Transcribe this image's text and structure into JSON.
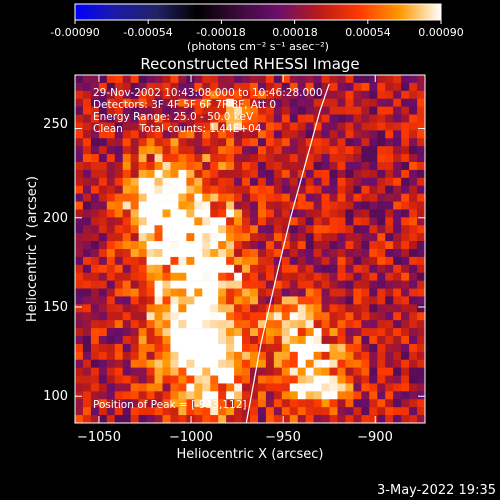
{
  "colorbar": {
    "ticks": [
      "-0.00090",
      "-0.00054",
      "-0.00018",
      "0.00018",
      "0.00054",
      "0.00090"
    ],
    "units_label": "(photons cm⁻² s⁻¹ asec⁻²)",
    "colors": [
      "#0000ff",
      "#1b1ba6",
      "#222266",
      "#000000",
      "#3a0a3a",
      "#6b0f6b",
      "#b81a1a",
      "#ff3a00",
      "#ff9900",
      "#ffffff"
    ]
  },
  "chart_data": {
    "type": "heatmap",
    "title": "Reconstructed RHESSI Image",
    "xlabel": "Heliocentric X (arcsec)",
    "ylabel": "Heliocentric Y (arcsec)",
    "xlim": [
      -1063,
      -873
    ],
    "ylim": [
      85,
      280
    ],
    "x_ticks": [
      -1050,
      -1000,
      -950,
      -900
    ],
    "y_ticks": [
      100,
      150,
      200,
      250
    ],
    "x_tick_labels": [
      "−1050",
      "−1000",
      "−950",
      "−900"
    ],
    "y_tick_labels": [
      "100",
      "150",
      "200",
      "250"
    ],
    "value_range": [
      -0.0009,
      0.0009
    ],
    "annotations": [
      "29-Nov-2002 10:43:08.000 to 10:46:28.000",
      "Detectors: 3F 4F 5F 6F 7F 8F, Att 0",
      "Energy Range: 25.0 - 50.0 keV",
      "Clean     Total counts: 1.44E+04"
    ],
    "peak_label": "Position of Peak = [-933,112]",
    "peak_position": [
      -933,
      112
    ],
    "limb_curve": [
      [
        -970,
        85
      ],
      [
        -962,
        130
      ],
      [
        -953,
        170
      ],
      [
        -946,
        200
      ],
      [
        -938,
        230
      ],
      [
        -930,
        260
      ],
      [
        -925,
        275
      ]
    ],
    "source_regions": [
      {
        "x": -1000,
        "y": 175,
        "sx": 18,
        "sy": 35,
        "amp": 0.00085
      },
      {
        "x": -990,
        "y": 120,
        "sx": 15,
        "sy": 20,
        "amp": 0.00075
      },
      {
        "x": -933,
        "y": 112,
        "sx": 12,
        "sy": 14,
        "amp": 0.0009
      },
      {
        "x": -945,
        "y": 140,
        "sx": 10,
        "sy": 10,
        "amp": 0.0006
      },
      {
        "x": -1020,
        "y": 210,
        "sx": 12,
        "sy": 15,
        "amp": 0.0006
      },
      {
        "x": -978,
        "y": 260,
        "sx": 10,
        "sy": 8,
        "amp": 0.0005
      }
    ]
  },
  "footer": {
    "date": "3-May-2022 19:35"
  }
}
